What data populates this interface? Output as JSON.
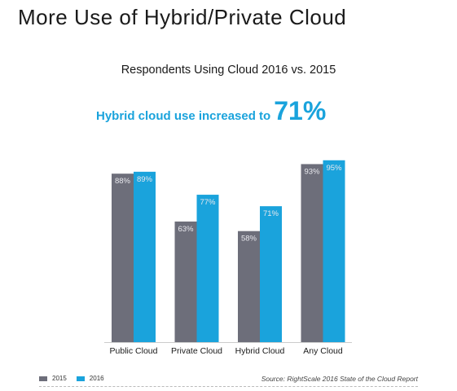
{
  "title": "More Use of Hybrid/Private Cloud",
  "subtitle": "Respondents Using Cloud 2016 vs. 2015",
  "headline": {
    "text": "Hybrid cloud use increased to",
    "value": "71%"
  },
  "colors": {
    "series_2015": "#6d6e7a",
    "series_2016": "#1aa3dc",
    "bar_label": "#e9e9ee",
    "axis": "#cccccc"
  },
  "legend": [
    {
      "label": "2015",
      "color": "#6d6e7a"
    },
    {
      "label": "2016",
      "color": "#1aa3dc"
    }
  ],
  "source": "Source: RightScale 2016 State of the Cloud Report",
  "chart_data": {
    "type": "bar",
    "categories": [
      "Public Cloud",
      "Private Cloud",
      "Hybrid Cloud",
      "Any Cloud"
    ],
    "series": [
      {
        "name": "2015",
        "values": [
          88,
          63,
          58,
          93
        ],
        "labels": [
          "88%",
          "63%",
          "58%",
          "93%"
        ]
      },
      {
        "name": "2016",
        "values": [
          89,
          77,
          71,
          95
        ],
        "labels": [
          "89%",
          "77%",
          "71%",
          "95%"
        ]
      }
    ],
    "ylim": [
      0,
      100
    ],
    "grid": false,
    "legend_position": "bottom-left"
  }
}
